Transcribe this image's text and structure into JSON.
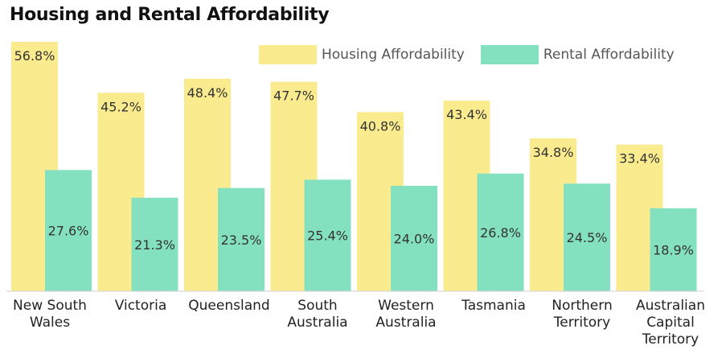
{
  "chart_data": {
    "type": "bar",
    "title": "Housing and Rental Affordability",
    "categories": [
      [
        "New South",
        "Wales"
      ],
      [
        "Victoria"
      ],
      [
        "Queensland"
      ],
      [
        "South",
        "Australia"
      ],
      [
        "Western",
        "Australia"
      ],
      [
        "Tasmania"
      ],
      [
        "Northern",
        "Territory"
      ],
      [
        "Australian",
        "Capital",
        "Territory"
      ]
    ],
    "series": [
      {
        "name": "Housing Affordability",
        "color": "#FBEB8F",
        "values": [
          56.8,
          45.2,
          48.4,
          47.7,
          40.8,
          43.4,
          34.8,
          33.4
        ],
        "labels": [
          "56.8%",
          "45.2%",
          "48.4%",
          "47.7%",
          "40.8%",
          "43.4%",
          "34.8%",
          "33.4%"
        ]
      },
      {
        "name": "Rental Affordability",
        "color": "#84E1C0",
        "values": [
          27.6,
          21.3,
          23.5,
          25.4,
          24.0,
          26.8,
          24.5,
          18.9
        ],
        "labels": [
          "27.6%",
          "21.3%",
          "23.5%",
          "25.4%",
          "24.0%",
          "26.8%",
          "24.5%",
          "18.9%"
        ]
      }
    ],
    "ylim": [
      0,
      56.8
    ],
    "grid": false,
    "legend_position": "top-right",
    "xlabel": "",
    "ylabel": ""
  }
}
